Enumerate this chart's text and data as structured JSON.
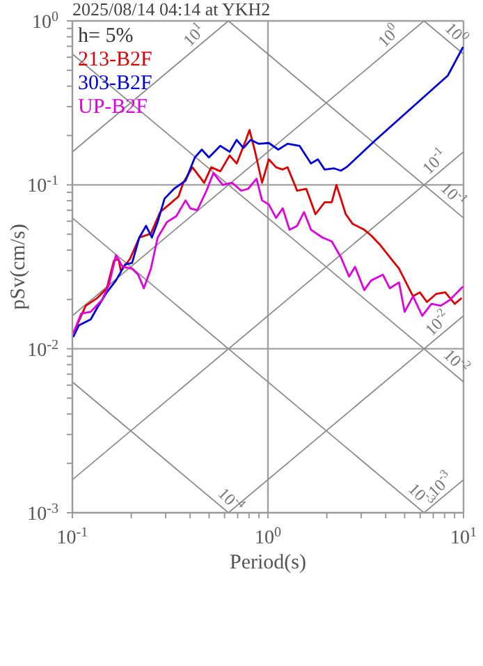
{
  "chart_data": {
    "type": "line",
    "title": "2025/08/14 04:14 at YKH2",
    "xlabel": "Period(s)",
    "ylabel": "pSv(cm/s)",
    "legend_title": "h= 5%",
    "legend": "top left",
    "grid": true,
    "marker": "none",
    "line_style": "solid",
    "log": "xy",
    "xlim": [
      0.1,
      10
    ],
    "ylim": [
      0.001,
      1
    ],
    "xticks": [
      {
        "value": 0.1,
        "label": "10$^{-1}$"
      },
      {
        "value": 0.2,
        "label": null
      },
      {
        "value": 0.3,
        "label": null
      },
      {
        "value": 0.4,
        "label": null
      },
      {
        "value": 0.5,
        "label": null
      },
      {
        "value": 0.6,
        "label": null
      },
      {
        "value": 0.7,
        "label": null
      },
      {
        "value": 0.8,
        "label": null
      },
      {
        "value": 0.9,
        "label": null
      },
      {
        "value": 1,
        "label": "10$^{0}$"
      },
      {
        "value": 2,
        "label": null
      },
      {
        "value": 3,
        "label": null
      },
      {
        "value": 4,
        "label": null
      },
      {
        "value": 5,
        "label": null
      },
      {
        "value": 6,
        "label": null
      },
      {
        "value": 7,
        "label": null
      },
      {
        "value": 8,
        "label": null
      },
      {
        "value": 9,
        "label": null
      },
      {
        "value": 10,
        "label": "10$^{1}$"
      }
    ],
    "yticks": [
      {
        "value": 0.001,
        "label": "10$^{-3}$"
      },
      {
        "value": 0.002,
        "label": null
      },
      {
        "value": 0.003,
        "label": null
      },
      {
        "value": 0.004,
        "label": null
      },
      {
        "value": 0.005,
        "label": null
      },
      {
        "value": 0.006,
        "label": null
      },
      {
        "value": 0.007,
        "label": null
      },
      {
        "value": 0.008,
        "label": null
      },
      {
        "value": 0.009,
        "label": null
      },
      {
        "value": 0.01,
        "label": "10$^{-2}$"
      },
      {
        "value": 0.02,
        "label": null
      },
      {
        "value": 0.03,
        "label": null
      },
      {
        "value": 0.04,
        "label": null
      },
      {
        "value": 0.05,
        "label": null
      },
      {
        "value": 0.06,
        "label": null
      },
      {
        "value": 0.07,
        "label": null
      },
      {
        "value": 0.08,
        "label": null
      },
      {
        "value": 0.09,
        "label": null
      },
      {
        "value": 0.1,
        "label": "10$^{-1}$"
      },
      {
        "value": 0.2,
        "label": null
      },
      {
        "value": 0.3,
        "label": null
      },
      {
        "value": 0.4,
        "label": null
      },
      {
        "value": 0.5,
        "label": null
      },
      {
        "value": 0.6,
        "label": null
      },
      {
        "value": 0.7,
        "label": null
      },
      {
        "value": 0.8,
        "label": null
      },
      {
        "value": 0.9,
        "label": null
      },
      {
        "value": 1,
        "label": "10$^{0}$"
      }
    ],
    "series": [
      {
        "color": "#8c8c8c",
        "x": [
          0.1,
          0.628
        ],
        "values": [
          0.159,
          1
        ]
      },
      {
        "color": "#8c8c8c",
        "x": [
          0.1,
          6.28
        ],
        "values": [
          0.0159,
          1
        ]
      },
      {
        "color": "#8c8c8c",
        "x": [
          0.1,
          10
        ],
        "values": [
          0.00159,
          0.159
        ]
      },
      {
        "color": "#8c8c8c",
        "x": [
          0.628,
          10
        ],
        "values": [
          0.001,
          0.0159
        ]
      },
      {
        "color": "#8c8c8c",
        "x": [
          6.28,
          10
        ],
        "values": [
          0.001,
          0.00159
        ]
      },
      {
        "color": "#8c8c8c",
        "x": [
          6.28,
          10
        ],
        "values": [
          1,
          0.628
        ]
      },
      {
        "color": "#8c8c8c",
        "x": [
          0.628,
          10
        ],
        "values": [
          1,
          0.0628
        ]
      },
      {
        "color": "#8c8c8c",
        "x": [
          0.1,
          10
        ],
        "values": [
          0.628,
          0.00628
        ]
      },
      {
        "color": "#8c8c8c",
        "x": [
          0.1,
          6.28
        ],
        "values": [
          0.0628,
          0.001
        ]
      },
      {
        "color": "#8c8c8c",
        "x": [
          0.1,
          0.628
        ],
        "values": [
          0.00628,
          0.001
        ]
      },
      {
        "name": "213-B2F",
        "color": "#e00000",
        "x": [
          0.101,
          0.117,
          0.134,
          0.15,
          0.163,
          0.172,
          0.177,
          0.197,
          0.22,
          0.252,
          0.281,
          0.313,
          0.349,
          0.369,
          0.411,
          0.472,
          0.513,
          0.571,
          0.637,
          0.692,
          0.772,
          0.805,
          0.86,
          0.933,
          1.01,
          1.1,
          1.19,
          1.26,
          1.41,
          1.57,
          1.75,
          1.95,
          2.12,
          2.24,
          2.5,
          2.71,
          3.11,
          3.37,
          3.76,
          4.2,
          4.68,
          5.52,
          5.98,
          6.5,
          7.24,
          8.07,
          9.02,
          9.79
        ],
        "values": [
          0.0124,
          0.0183,
          0.0204,
          0.0234,
          0.0344,
          0.0353,
          0.0299,
          0.0353,
          0.0477,
          0.0504,
          0.0682,
          0.076,
          0.0849,
          0.103,
          0.128,
          0.103,
          0.128,
          0.121,
          0.151,
          0.135,
          0.188,
          0.216,
          0.159,
          0.103,
          0.143,
          0.128,
          0.124,
          0.128,
          0.0921,
          0.0946,
          0.0662,
          0.0782,
          0.0782,
          0.1,
          0.0662,
          0.0578,
          0.0532,
          0.0491,
          0.0428,
          0.0362,
          0.0308,
          0.0209,
          0.0221,
          0.0193,
          0.0216,
          0.0221,
          0.0188,
          0.0204
        ]
      },
      {
        "name": "303-B2F",
        "color": "#0000e0",
        "x": [
          0.101,
          0.108,
          0.124,
          0.134,
          0.15,
          0.167,
          0.186,
          0.202,
          0.22,
          0.238,
          0.255,
          0.273,
          0.296,
          0.331,
          0.379,
          0.423,
          0.459,
          0.499,
          0.571,
          0.637,
          0.692,
          0.75,
          0.815,
          0.899,
          1.01,
          1.13,
          1.26,
          1.45,
          1.66,
          1.8,
          1.95,
          2.18,
          2.36,
          2.54,
          3.56,
          8.31,
          9.95
        ],
        "values": [
          0.0118,
          0.0139,
          0.0151,
          0.0178,
          0.0221,
          0.0261,
          0.0327,
          0.0334,
          0.0477,
          0.0562,
          0.0477,
          0.0594,
          0.0824,
          0.0946,
          0.106,
          0.147,
          0.164,
          0.147,
          0.173,
          0.159,
          0.188,
          0.168,
          0.188,
          0.178,
          0.18,
          0.164,
          0.178,
          0.173,
          0.135,
          0.143,
          0.124,
          0.126,
          0.122,
          0.129,
          0.188,
          0.464,
          0.693
        ]
      },
      {
        "name": "UP-B2F",
        "color": "#e000e0",
        "x": [
          0.101,
          0.111,
          0.124,
          0.142,
          0.154,
          0.167,
          0.181,
          0.202,
          0.217,
          0.232,
          0.252,
          0.273,
          0.305,
          0.34,
          0.379,
          0.401,
          0.435,
          0.485,
          0.526,
          0.587,
          0.655,
          0.73,
          0.792,
          0.874,
          0.933,
          1.01,
          1.1,
          1.19,
          1.29,
          1.41,
          1.53,
          1.66,
          1.9,
          2.12,
          2.36,
          2.6,
          2.79,
          3.11,
          3.37,
          3.87,
          4.2,
          4.68,
          5.0,
          5.52,
          6.15,
          6.86,
          7.65,
          8.53,
          9.95
        ],
        "values": [
          0.0124,
          0.0164,
          0.0168,
          0.0199,
          0.0247,
          0.0372,
          0.0316,
          0.0308,
          0.0283,
          0.0234,
          0.0308,
          0.0477,
          0.0594,
          0.0644,
          0.0804,
          0.0719,
          0.07,
          0.0921,
          0.118,
          0.1,
          0.103,
          0.0921,
          0.0946,
          0.109,
          0.0804,
          0.076,
          0.0628,
          0.0719,
          0.0532,
          0.0562,
          0.0682,
          0.0532,
          0.0477,
          0.0452,
          0.0362,
          0.0276,
          0.0316,
          0.0228,
          0.0261,
          0.0283,
          0.0234,
          0.0254,
          0.0168,
          0.0209,
          0.0159,
          0.0188,
          0.0183,
          0.0199,
          0.024
        ]
      }
    ],
    "annotations": [
      {
        "text": "10$^{1}$",
        "x": 0.46,
        "y": 0.732
      },
      {
        "text": "10$^{0}$",
        "x": 4.55,
        "y": 0.724
      },
      {
        "text": "10$^{0}$",
        "x": 8.36,
        "y": 0.751
      },
      {
        "text": "10$^{-1}$",
        "x": 7.8,
        "y": 0.124
      },
      {
        "text": "10$^{-1}$",
        "x": 8.07,
        "y": 0.0779
      },
      {
        "text": "10$^{-2}$",
        "x": 8.07,
        "y": 0.0128
      },
      {
        "text": "10$^{-2}$",
        "x": 8.36,
        "y": 0.00751
      },
      {
        "text": "10$^{-3}$",
        "x": 8.36,
        "y": 0.00133
      },
      {
        "text": "10$^{-3}$",
        "x": 5.52,
        "y": 0.00114
      },
      {
        "text": "10$^{-4}$",
        "x": 0.587,
        "y": 0.00107
      }
    ]
  }
}
